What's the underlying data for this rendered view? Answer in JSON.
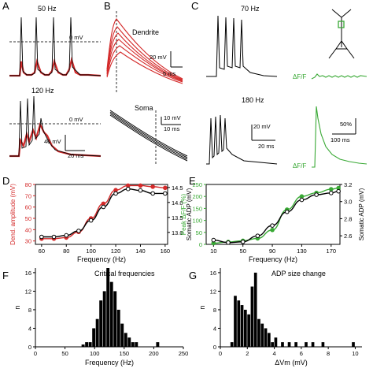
{
  "panels": {
    "A": {
      "letter": "A",
      "freq_top": "50 Hz",
      "freq_bottom": "120 Hz",
      "zero_label_top": "0 mV",
      "zero_label_bottom": "0 mV",
      "scale_v": "40 mV",
      "scale_t": "20 ms"
    },
    "B": {
      "letter": "B",
      "dendrite_label": "Dendrite",
      "soma_label": "Soma",
      "dend_scale_v": "20 mV",
      "dend_scale_t": "5 ms",
      "soma_scale_v": "10 mV",
      "soma_scale_t": "10 ms"
    },
    "C": {
      "letter": "C",
      "freq_top": "70 Hz",
      "freq_bottom": "180 Hz",
      "dff_top": "ΔF/F",
      "dff_bottom": "ΔF/F",
      "scale_v": "20 mV",
      "scale_t": "20 ms",
      "scale_pct": "50%",
      "scale_ms": "100 ms"
    },
    "F": {
      "letter": "F",
      "annotation": "Critical frequencies"
    },
    "G": {
      "letter": "G",
      "annotation": "ADP size change"
    }
  },
  "colors": {
    "red": "#d42a2a",
    "green": "#39a935",
    "black": "#000000",
    "gray": "#888888"
  },
  "chart_data": [
    {
      "id": "D",
      "letter": "D",
      "type": "scatter",
      "xlabel": "Frequency (Hz)",
      "ylabel_left": "Dend. amplitude (mV)",
      "ylabel_right": "Somatic ADP (mV)",
      "xlim": [
        55,
        162
      ],
      "xticks": [
        60,
        80,
        100,
        120,
        140,
        160
      ],
      "ylim_left": [
        27,
        80
      ],
      "yticks_left": [
        30,
        40,
        50,
        60,
        70,
        80
      ],
      "ylim_right": [
        12.6,
        14.6
      ],
      "yticks_right": [
        13.0,
        13.5,
        14.0,
        14.5
      ],
      "series": [
        {
          "axis": "left",
          "color": "#d42a2a",
          "marker": "filled",
          "x": [
            60,
            70,
            80,
            90,
            100,
            110,
            120,
            130,
            140,
            150,
            160
          ],
          "y": [
            32,
            32,
            33,
            38,
            50,
            63,
            75,
            79,
            79,
            78,
            77
          ]
        },
        {
          "axis": "right",
          "color": "#000000",
          "marker": "open",
          "x": [
            60,
            70,
            80,
            90,
            100,
            110,
            120,
            130,
            140,
            150,
            160
          ],
          "y": [
            12.85,
            12.85,
            12.9,
            13.05,
            13.4,
            13.85,
            14.3,
            14.45,
            14.4,
            14.3,
            14.3
          ]
        }
      ]
    },
    {
      "id": "E",
      "letter": "E",
      "type": "scatter",
      "xlabel": "Frequency (Hz)",
      "ylabel_left": "Peak ΔF/F (%)",
      "ylabel_right": "Somatic ADP (mV)",
      "xlim": [
        0,
        182
      ],
      "xticks": [
        10,
        50,
        90,
        130,
        170
      ],
      "ylim_left": [
        0,
        250
      ],
      "yticks_left": [
        0,
        50,
        100,
        150,
        200,
        250
      ],
      "ylim_right": [
        2.5,
        3.2
      ],
      "yticks_right": [
        2.6,
        2.8,
        3.0,
        3.2
      ],
      "series": [
        {
          "axis": "left",
          "color": "#39a935",
          "marker": "filled",
          "x": [
            10,
            30,
            50,
            70,
            90,
            110,
            130,
            150,
            170,
            180
          ],
          "y": [
            5,
            10,
            15,
            25,
            60,
            145,
            200,
            215,
            230,
            235
          ]
        },
        {
          "axis": "right",
          "color": "#000000",
          "marker": "open",
          "x": [
            10,
            30,
            50,
            70,
            90,
            110,
            130,
            150,
            170,
            180
          ],
          "y": [
            2.55,
            2.52,
            2.53,
            2.6,
            2.72,
            2.88,
            3.02,
            3.08,
            3.1,
            3.12
          ]
        }
      ]
    },
    {
      "id": "F",
      "letter": "F",
      "type": "bar",
      "xlabel": "Frequency (Hz)",
      "ylabel": "n",
      "xlim": [
        0,
        250
      ],
      "xticks": [
        0,
        50,
        100,
        150,
        200,
        250
      ],
      "ylim": [
        0,
        17
      ],
      "yticks": [
        0,
        4,
        8,
        12,
        16
      ],
      "bin_width": 6,
      "bin_left": [
        78,
        84,
        90,
        96,
        102,
        108,
        114,
        120,
        126,
        132,
        138,
        144,
        150,
        156,
        162,
        168,
        204
      ],
      "values": [
        0.5,
        1,
        1,
        4,
        6,
        10,
        12,
        17,
        14,
        12,
        8,
        5,
        3,
        2,
        1,
        1,
        1
      ]
    },
    {
      "id": "G",
      "letter": "G",
      "type": "bar",
      "xlabel": "ΔVm (mV)",
      "ylabel": "n",
      "xlim": [
        0,
        10.5
      ],
      "xticks": [
        0,
        2,
        4,
        6,
        8,
        10
      ],
      "ylim": [
        0,
        17
      ],
      "yticks": [
        0,
        4,
        8,
        12,
        16
      ],
      "bin_width": 0.25,
      "bin_left": [
        0.75,
        1.0,
        1.25,
        1.5,
        1.75,
        2.0,
        2.25,
        2.5,
        2.75,
        3.0,
        3.25,
        3.5,
        3.75,
        4.0,
        4.5,
        5.0,
        5.5,
        6.25,
        6.75,
        7.5,
        9.75
      ],
      "values": [
        1,
        11,
        10,
        9,
        8,
        7,
        13,
        16,
        6,
        5,
        4,
        3,
        1,
        2,
        1,
        1,
        1,
        1,
        1,
        1,
        1
      ]
    }
  ]
}
